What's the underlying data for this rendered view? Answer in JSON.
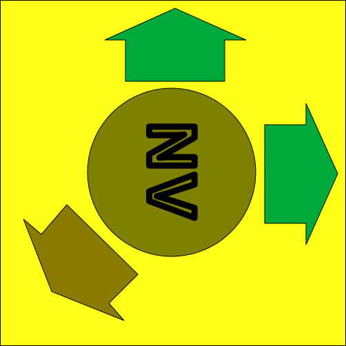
{
  "captcha": {
    "text": "NV"
  }
}
